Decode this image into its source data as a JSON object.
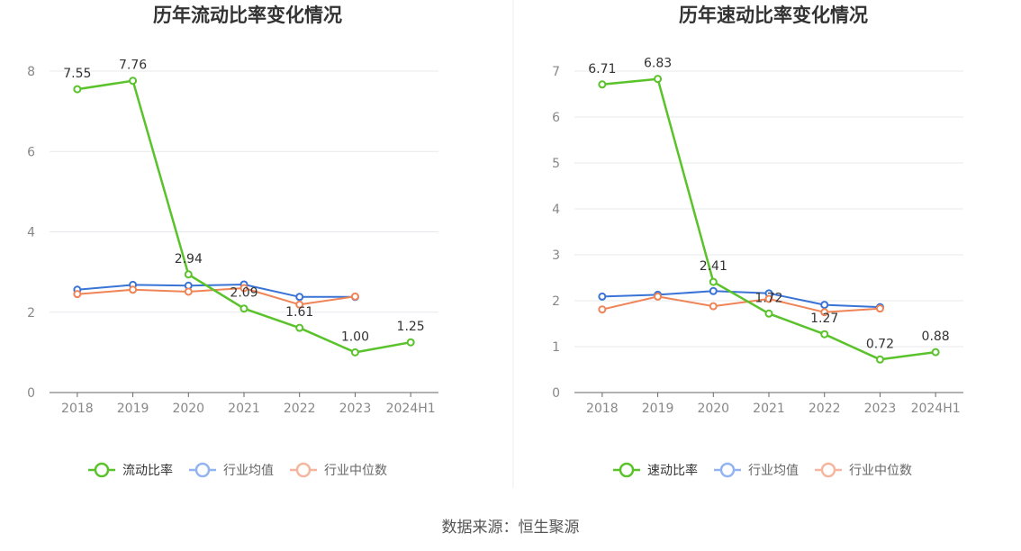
{
  "source": "数据来源：恒生聚源",
  "colors": {
    "company": "#5ac22a",
    "industry_avg": "#3a73d6",
    "industry_median": "#ef8457",
    "legend_avg": "#93b4f0",
    "legend_median": "#f5b6a0",
    "grid": "#e6e8ee",
    "axis": "#666666"
  },
  "chart_data": [
    {
      "type": "line",
      "title": "历年流动比率变化情况",
      "categories": [
        "2018",
        "2019",
        "2020",
        "2021",
        "2022",
        "2023",
        "2024H1"
      ],
      "ylim": [
        0,
        8
      ],
      "yticks": [
        0,
        2,
        4,
        6,
        8
      ],
      "grid": true,
      "legend": "bottom",
      "series": [
        {
          "name": "流动比率",
          "role": "company",
          "values": [
            7.55,
            7.76,
            2.94,
            2.09,
            1.61,
            1.0,
            1.25
          ],
          "labels": [
            "7.55",
            "7.76",
            "2.94",
            "2.09",
            "1.61",
            "1.00",
            "1.25"
          ]
        },
        {
          "name": "行业均值",
          "role": "industry_avg",
          "values": [
            2.56,
            2.68,
            2.66,
            2.69,
            2.38,
            2.38,
            null
          ]
        },
        {
          "name": "行业中位数",
          "role": "industry_median",
          "values": [
            2.45,
            2.56,
            2.51,
            2.6,
            2.19,
            2.39,
            null
          ]
        }
      ]
    },
    {
      "type": "line",
      "title": "历年速动比率变化情况",
      "categories": [
        "2018",
        "2019",
        "2020",
        "2021",
        "2022",
        "2023",
        "2024H1"
      ],
      "ylim": [
        0,
        7
      ],
      "yticks": [
        0,
        1,
        2,
        3,
        4,
        5,
        6,
        7
      ],
      "grid": true,
      "legend": "bottom",
      "series": [
        {
          "name": "速动比率",
          "role": "company",
          "values": [
            6.71,
            6.83,
            2.41,
            1.72,
            1.27,
            0.72,
            0.88
          ],
          "labels": [
            "6.71",
            "6.83",
            "2.41",
            "1.72",
            "1.27",
            "0.72",
            "0.88"
          ]
        },
        {
          "name": "行业均值",
          "role": "industry_avg",
          "values": [
            2.09,
            2.13,
            2.21,
            2.16,
            1.91,
            1.86,
            null
          ]
        },
        {
          "name": "行业中位数",
          "role": "industry_median",
          "values": [
            1.81,
            2.09,
            1.88,
            2.04,
            1.75,
            1.83,
            null
          ]
        }
      ]
    }
  ]
}
